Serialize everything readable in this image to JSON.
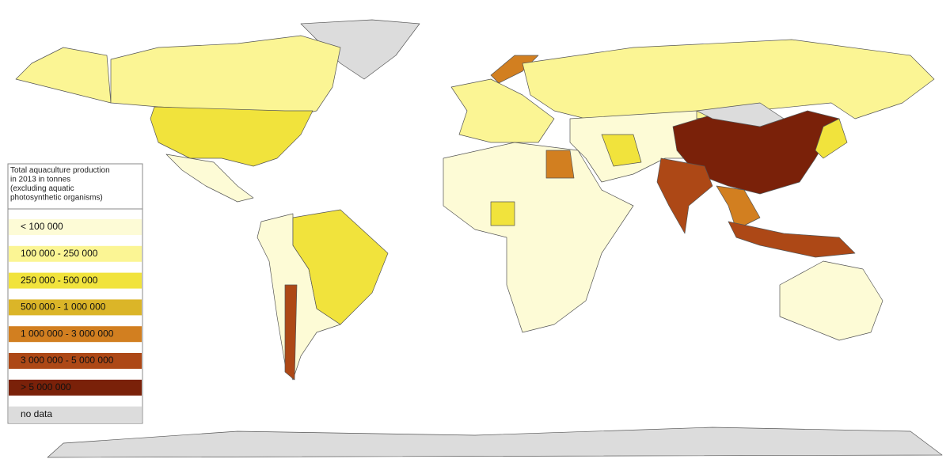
{
  "legend": {
    "title": [
      "Total aquaculture production",
      "in 2013 in tonnes",
      "(excluding aquatic",
      "photosynthetic organisms)"
    ],
    "items": [
      {
        "label": "< 100 000",
        "color": "#fdfbd6"
      },
      {
        "label": "100 000 - 250 000",
        "color": "#fbf594"
      },
      {
        "label": "250 000 - 500 000",
        "color": "#f1e33c"
      },
      {
        "label": "500 000 - 1 000 000",
        "color": "#dbb528"
      },
      {
        "label": "1 000 000 - 3 000 000",
        "color": "#d27f20"
      },
      {
        "label": "3 000 000 - 5 000 000",
        "color": "#ad4816"
      },
      {
        "label": "> 5 000 000",
        "color": "#7a2109"
      },
      {
        "label": "no data",
        "color": "#dcdcdc"
      }
    ]
  }
}
